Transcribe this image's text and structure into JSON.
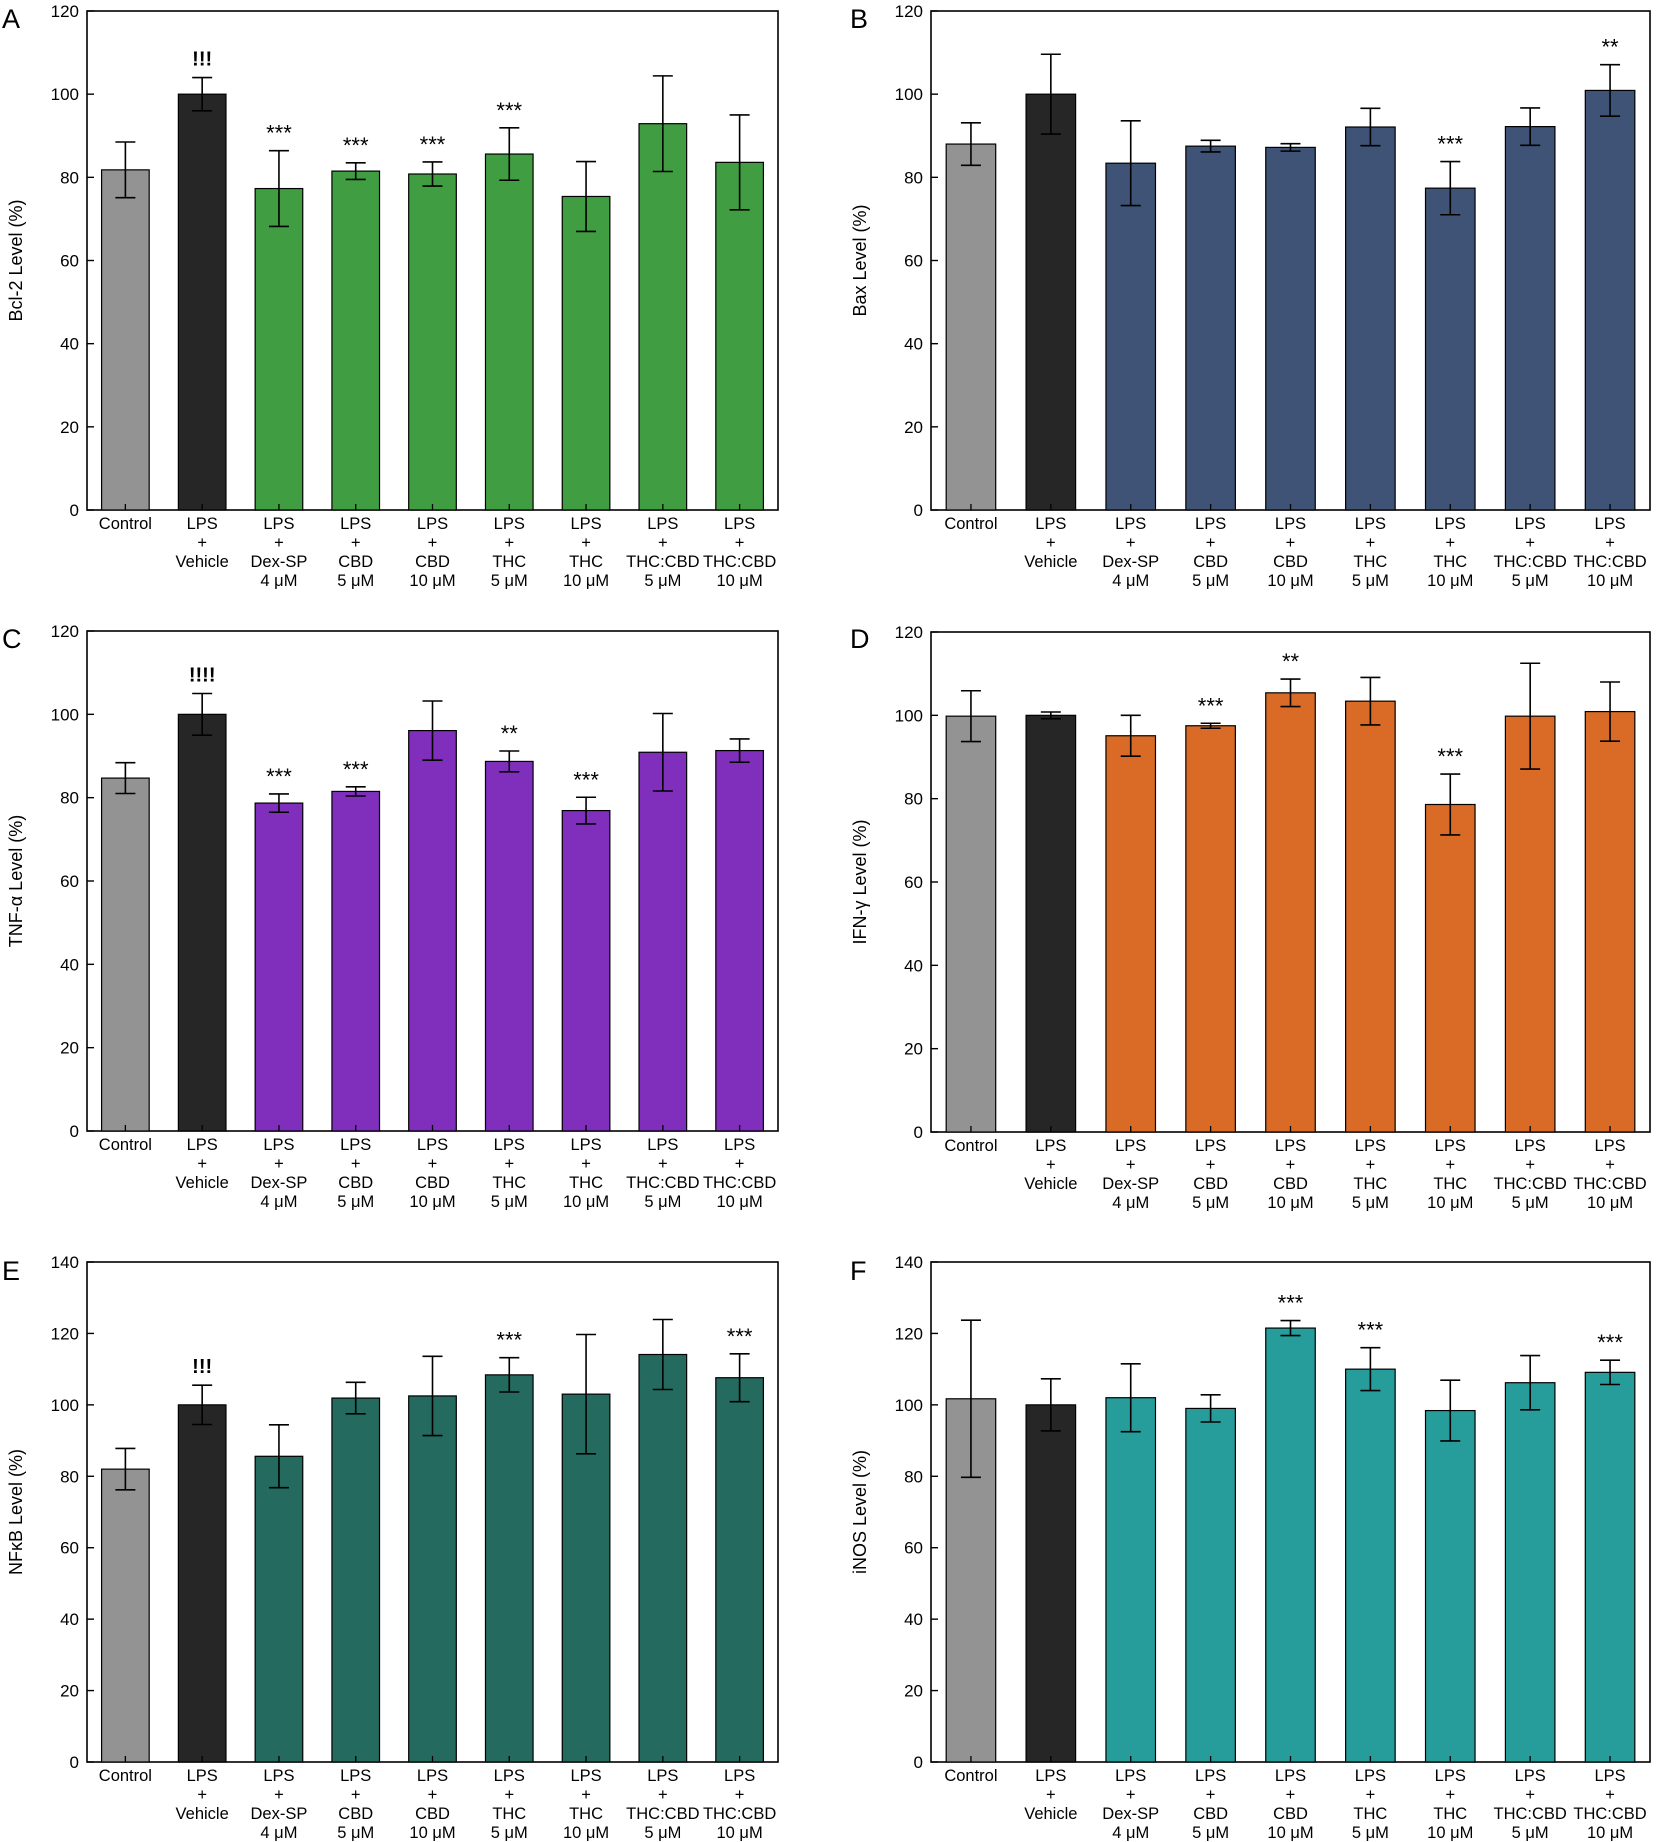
{
  "chart_data": [
    {
      "panel": "A",
      "type": "bar",
      "ylabel": "Bcl-2 Level (%)",
      "ylim": [
        0,
        120
      ],
      "yticks": [
        0,
        20,
        40,
        60,
        80,
        100,
        120
      ],
      "categories": [
        [
          "Control"
        ],
        [
          "LPS",
          "+",
          "Vehicle"
        ],
        [
          "LPS",
          "+",
          "Dex-SP",
          "4 μM"
        ],
        [
          "LPS",
          "+",
          "CBD",
          "5 μM"
        ],
        [
          "LPS",
          "+",
          "CBD",
          "10 μM"
        ],
        [
          "LPS",
          "+",
          "THC",
          "5 μM"
        ],
        [
          "LPS",
          "+",
          "THC",
          "10 μM"
        ],
        [
          "LPS",
          "+",
          "THC:CBD",
          "5 μM"
        ],
        [
          "LPS",
          "+",
          "THC:CBD",
          "10 μM"
        ]
      ],
      "values": [
        81.8,
        100.0,
        77.3,
        81.5,
        80.8,
        85.6,
        75.4,
        92.9,
        83.6
      ],
      "errors": [
        6.7,
        4.0,
        9.1,
        2.0,
        2.9,
        6.3,
        8.4,
        11.5,
        11.4
      ],
      "annotations": [
        "",
        "!!!",
        "***",
        "***",
        "***",
        "***",
        "",
        "",
        ""
      ],
      "colors": [
        "#939393",
        "#262626",
        "#419d41",
        "#419d41",
        "#419d41",
        "#419d41",
        "#419d41",
        "#419d41",
        "#419d41"
      ]
    },
    {
      "panel": "B",
      "type": "bar",
      "ylabel": "Bax Level (%)",
      "ylim": [
        0,
        120
      ],
      "yticks": [
        0,
        20,
        40,
        60,
        80,
        100,
        120
      ],
      "categories": [
        [
          "Control"
        ],
        [
          "LPS",
          "+",
          "Vehicle"
        ],
        [
          "LPS",
          "+",
          "Dex-SP",
          "4 μM"
        ],
        [
          "LPS",
          "+",
          "CBD",
          "5 μM"
        ],
        [
          "LPS",
          "+",
          "CBD",
          "10 μM"
        ],
        [
          "LPS",
          "+",
          "THC",
          "5 μM"
        ],
        [
          "LPS",
          "+",
          "THC",
          "10 μM"
        ],
        [
          "LPS",
          "+",
          "THC:CBD",
          "5 μM"
        ],
        [
          "LPS",
          "+",
          "THC:CBD",
          "10 μM"
        ]
      ],
      "values": [
        88.0,
        100.0,
        83.4,
        87.5,
        87.2,
        92.1,
        77.4,
        92.2,
        100.9
      ],
      "errors": [
        5.1,
        9.6,
        10.2,
        1.4,
        0.9,
        4.5,
        6.4,
        4.5,
        6.2
      ],
      "annotations": [
        "",
        "",
        "",
        "",
        "",
        "",
        "***",
        "",
        "**"
      ],
      "colors": [
        "#939393",
        "#262626",
        "#3e5375",
        "#3e5375",
        "#3e5375",
        "#3e5375",
        "#3e5375",
        "#3e5375",
        "#3e5375"
      ]
    },
    {
      "panel": "C",
      "type": "bar",
      "ylabel": "TNF-α Level (%)",
      "ylim": [
        0,
        120
      ],
      "yticks": [
        0,
        20,
        40,
        60,
        80,
        100,
        120
      ],
      "categories": [
        [
          "Control"
        ],
        [
          "LPS",
          "+",
          "Vehicle"
        ],
        [
          "LPS",
          "+",
          "Dex-SP",
          "4 μM"
        ],
        [
          "LPS",
          "+",
          "CBD",
          "5 μM"
        ],
        [
          "LPS",
          "+",
          "CBD",
          "10 μM"
        ],
        [
          "LPS",
          "+",
          "THC",
          "5 μM"
        ],
        [
          "LPS",
          "+",
          "THC",
          "10 μM"
        ],
        [
          "LPS",
          "+",
          "THC:CBD",
          "5 μM"
        ],
        [
          "LPS",
          "+",
          "THC:CBD",
          "10 μM"
        ]
      ],
      "values": [
        84.7,
        100.0,
        78.7,
        81.5,
        96.1,
        88.7,
        76.9,
        90.9,
        91.3
      ],
      "errors": [
        3.7,
        5.0,
        2.2,
        1.1,
        7.1,
        2.5,
        3.2,
        9.3,
        2.8
      ],
      "annotations": [
        "",
        "!!!!",
        "***",
        "***",
        "",
        "**",
        "***",
        "",
        ""
      ],
      "colors": [
        "#939393",
        "#262626",
        "#7f2fbb",
        "#7f2fbb",
        "#7f2fbb",
        "#7f2fbb",
        "#7f2fbb",
        "#7f2fbb",
        "#7f2fbb"
      ]
    },
    {
      "panel": "D",
      "type": "bar",
      "ylabel": "IFN-γ Level (%)",
      "ylim": [
        0,
        120
      ],
      "yticks": [
        0,
        20,
        40,
        60,
        80,
        100,
        120
      ],
      "categories": [
        [
          "Control"
        ],
        [
          "LPS",
          "+",
          "Vehicle"
        ],
        [
          "LPS",
          "+",
          "Dex-SP",
          "4 μM"
        ],
        [
          "LPS",
          "+",
          "CBD",
          "5 μM"
        ],
        [
          "LPS",
          "+",
          "CBD",
          "10 μM"
        ],
        [
          "LPS",
          "+",
          "THC",
          "5 μM"
        ],
        [
          "LPS",
          "+",
          "THC",
          "10 μM"
        ],
        [
          "LPS",
          "+",
          "THC:CBD",
          "5 μM"
        ],
        [
          "LPS",
          "+",
          "THC:CBD",
          "10 μM"
        ]
      ],
      "values": [
        99.8,
        100.0,
        95.1,
        97.5,
        105.4,
        103.4,
        78.6,
        99.8,
        100.9
      ],
      "errors": [
        6.1,
        0.8,
        4.9,
        0.6,
        3.3,
        5.7,
        7.3,
        12.7,
        7.1
      ],
      "annotations": [
        "",
        "",
        "",
        "***",
        "**",
        "",
        "***",
        "",
        ""
      ],
      "colors": [
        "#939393",
        "#262626",
        "#d96b26",
        "#d96b26",
        "#d96b26",
        "#d96b26",
        "#d96b26",
        "#d96b26",
        "#d96b26"
      ]
    },
    {
      "panel": "E",
      "type": "bar",
      "ylabel": "NFκB Level (%)",
      "ylim": [
        0,
        140
      ],
      "yticks": [
        0,
        20,
        40,
        60,
        80,
        100,
        120,
        140
      ],
      "categories": [
        [
          "Control"
        ],
        [
          "LPS",
          "+",
          "Vehicle"
        ],
        [
          "LPS",
          "+",
          "Dex-SP",
          "4 μM"
        ],
        [
          "LPS",
          "+",
          "CBD",
          "5 μM"
        ],
        [
          "LPS",
          "+",
          "CBD",
          "10 μM"
        ],
        [
          "LPS",
          "+",
          "THC",
          "5 μM"
        ],
        [
          "LPS",
          "+",
          "THC",
          "10 μM"
        ],
        [
          "LPS",
          "+",
          "THC:CBD",
          "5 μM"
        ],
        [
          "LPS",
          "+",
          "THC:CBD",
          "10 μM"
        ]
      ],
      "values": [
        82.0,
        100.0,
        85.6,
        101.9,
        102.5,
        108.4,
        103.0,
        114.1,
        107.6
      ],
      "errors": [
        5.8,
        5.5,
        8.8,
        4.4,
        11.1,
        4.8,
        16.7,
        9.8,
        6.7
      ],
      "annotations": [
        "",
        "!!!",
        "",
        "",
        "",
        "***",
        "",
        "",
        "***"
      ],
      "colors": [
        "#939393",
        "#262626",
        "#256a5e",
        "#256a5e",
        "#256a5e",
        "#256a5e",
        "#256a5e",
        "#256a5e",
        "#256a5e"
      ]
    },
    {
      "panel": "F",
      "type": "bar",
      "ylabel": "iNOS Level (%)",
      "ylim": [
        0,
        140
      ],
      "yticks": [
        0,
        20,
        40,
        60,
        80,
        100,
        120,
        140
      ],
      "categories": [
        [
          "Control"
        ],
        [
          "LPS",
          "+",
          "Vehicle"
        ],
        [
          "LPS",
          "+",
          "Dex-SP",
          "4 μM"
        ],
        [
          "LPS",
          "+",
          "CBD",
          "5 μM"
        ],
        [
          "LPS",
          "+",
          "CBD",
          "10 μM"
        ],
        [
          "LPS",
          "+",
          "THC",
          "5 μM"
        ],
        [
          "LPS",
          "+",
          "THC",
          "10 μM"
        ],
        [
          "LPS",
          "+",
          "THC:CBD",
          "5 μM"
        ],
        [
          "LPS",
          "+",
          "THC:CBD",
          "10 μM"
        ]
      ],
      "values": [
        101.7,
        100.0,
        102.0,
        99.0,
        121.5,
        110.0,
        98.4,
        106.2,
        109.1
      ],
      "errors": [
        22.0,
        7.3,
        9.5,
        3.8,
        2.1,
        6.0,
        8.5,
        7.6,
        3.4
      ],
      "annotations": [
        "",
        "",
        "",
        "",
        "***",
        "***",
        "",
        "",
        "***"
      ],
      "colors": [
        "#939393",
        "#262626",
        "#269d9b",
        "#269d9b",
        "#269d9b",
        "#269d9b",
        "#269d9b",
        "#269d9b",
        "#269d9b"
      ]
    }
  ]
}
